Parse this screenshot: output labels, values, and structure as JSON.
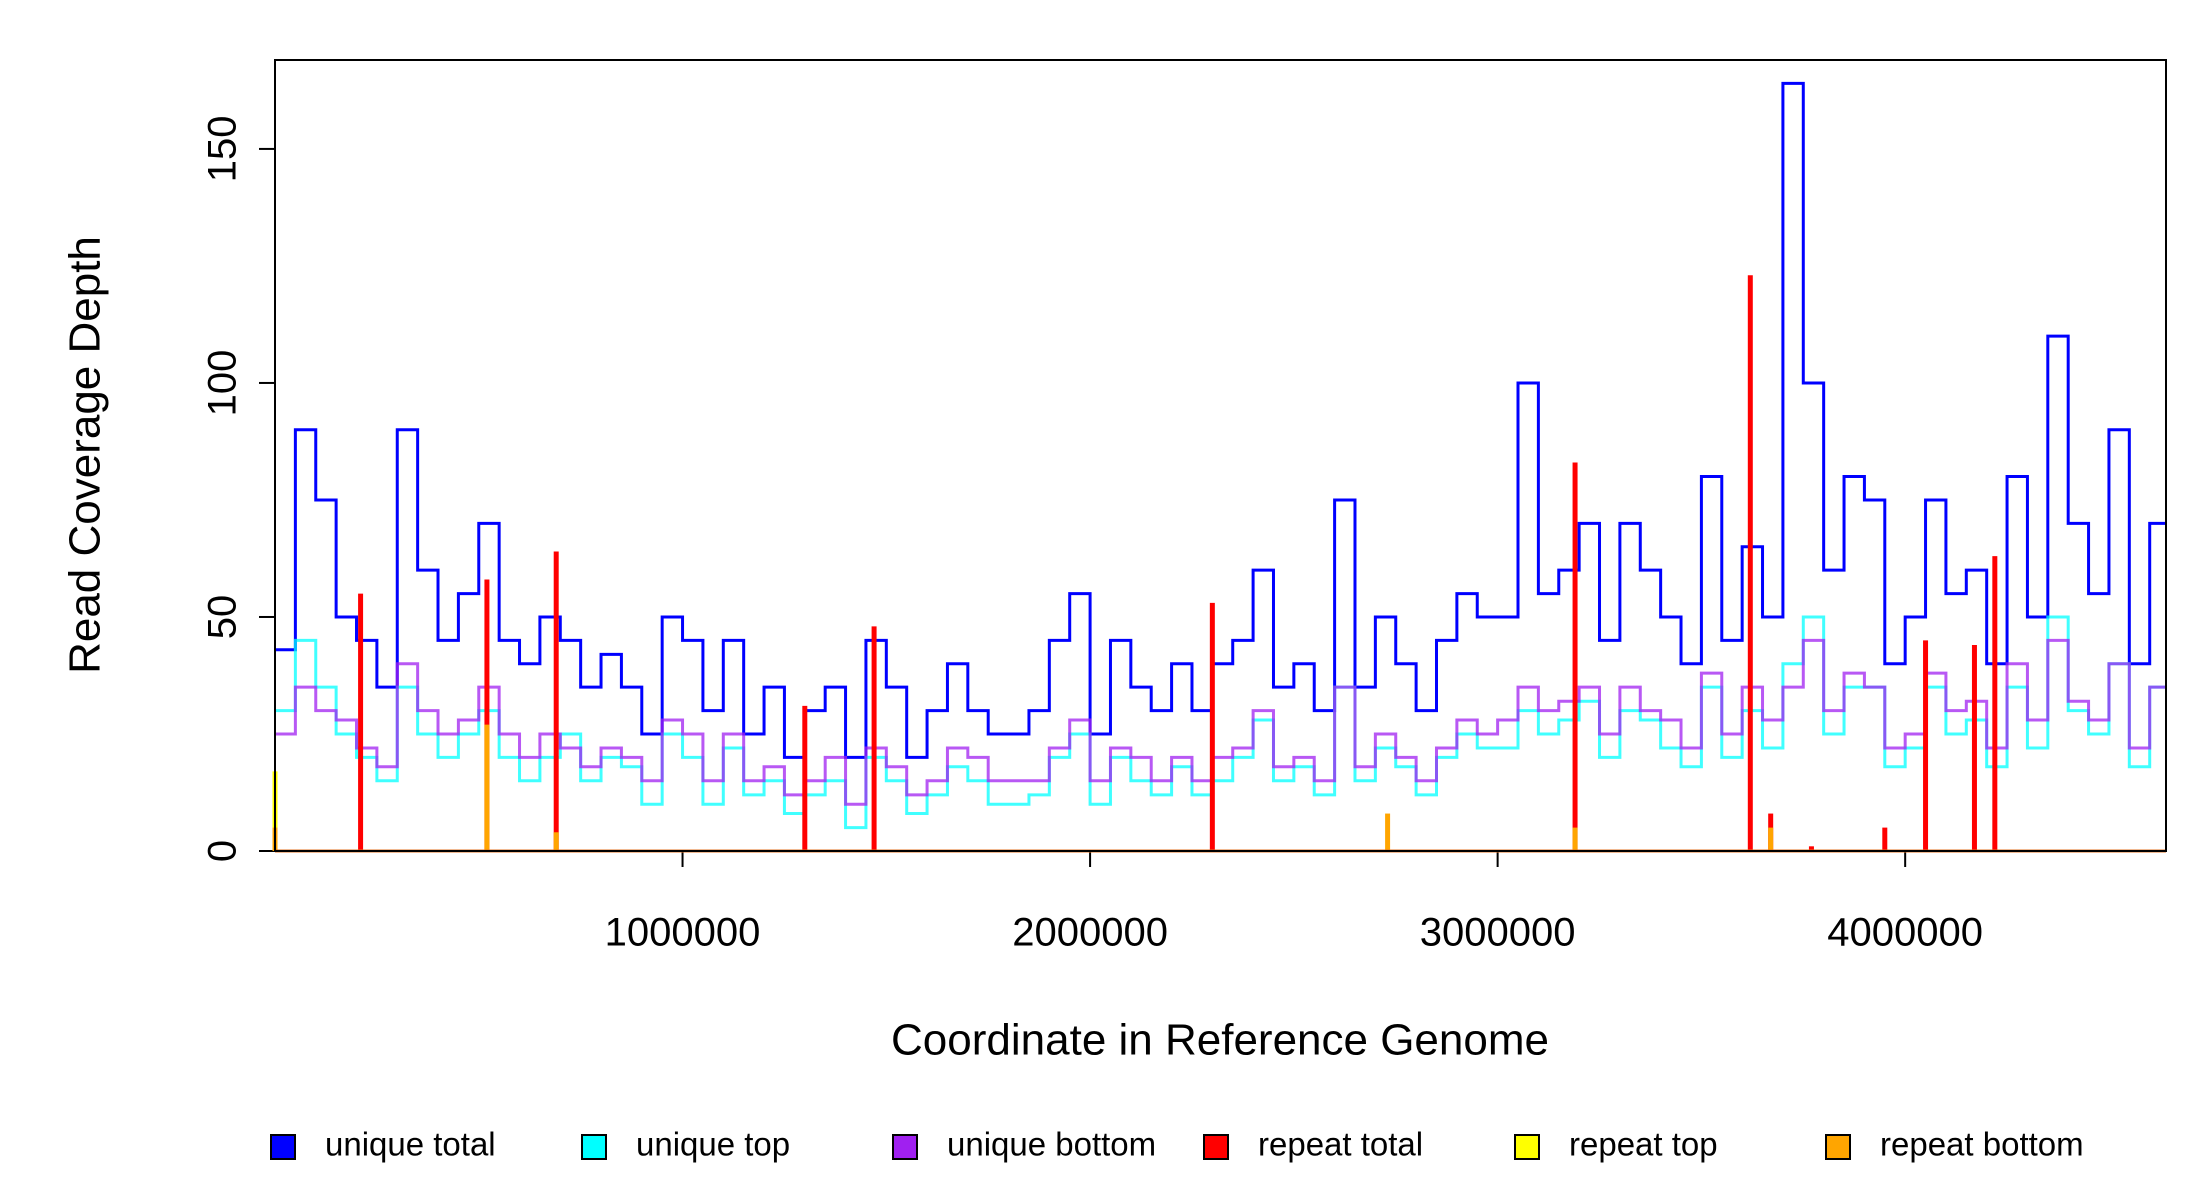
{
  "chart_data": {
    "type": "step",
    "xlabel": "Coordinate in Reference Genome",
    "ylabel": "Read Coverage Depth",
    "xlim": [
      0,
      4640000
    ],
    "ylim": [
      0,
      169
    ],
    "xticks": [
      1000000,
      2000000,
      3000000,
      4000000
    ],
    "yticks": [
      0,
      50,
      100,
      150
    ],
    "x": [
      0,
      50000,
      100000,
      150000,
      200000,
      250000,
      300000,
      350000,
      400000,
      450000,
      500000,
      550000,
      600000,
      650000,
      700000,
      750000,
      800000,
      850000,
      900000,
      950000,
      1000000,
      1050000,
      1100000,
      1150000,
      1200000,
      1250000,
      1300000,
      1350000,
      1400000,
      1450000,
      1500000,
      1550000,
      1600000,
      1650000,
      1700000,
      1750000,
      1800000,
      1850000,
      1900000,
      1950000,
      2000000,
      2050000,
      2100000,
      2150000,
      2200000,
      2250000,
      2300000,
      2350000,
      2400000,
      2450000,
      2500000,
      2550000,
      2600000,
      2650000,
      2700000,
      2750000,
      2800000,
      2850000,
      2900000,
      2950000,
      3000000,
      3050000,
      3100000,
      3150000,
      3200000,
      3250000,
      3300000,
      3350000,
      3400000,
      3450000,
      3500000,
      3550000,
      3600000,
      3650000,
      3700000,
      3750000,
      3800000,
      3850000,
      3900000,
      3950000,
      4000000,
      4050000,
      4100000,
      4150000,
      4200000,
      4250000,
      4300000,
      4350000,
      4400000,
      4450000,
      4500000,
      4550000,
      4600000
    ],
    "series": [
      {
        "name": "unique total",
        "color": "#0000ff",
        "values": [
          43,
          90,
          75,
          50,
          45,
          35,
          90,
          60,
          45,
          55,
          70,
          45,
          40,
          50,
          45,
          35,
          42,
          35,
          25,
          50,
          45,
          30,
          45,
          25,
          35,
          20,
          30,
          35,
          20,
          45,
          35,
          20,
          30,
          40,
          30,
          25,
          25,
          30,
          45,
          55,
          25,
          45,
          35,
          30,
          40,
          30,
          40,
          45,
          60,
          35,
          40,
          30,
          75,
          35,
          50,
          40,
          30,
          45,
          55,
          50,
          50,
          100,
          55,
          60,
          70,
          45,
          70,
          60,
          50,
          40,
          80,
          45,
          65,
          50,
          164,
          100,
          60,
          80,
          75,
          40,
          50,
          75,
          55,
          60,
          40,
          80,
          50,
          110,
          70,
          55,
          90,
          40,
          70
        ]
      },
      {
        "name": "unique top",
        "color": "#00ffff",
        "values": [
          30,
          45,
          35,
          25,
          20,
          15,
          35,
          25,
          20,
          25,
          30,
          20,
          15,
          20,
          25,
          15,
          20,
          18,
          10,
          25,
          20,
          10,
          22,
          12,
          15,
          8,
          12,
          15,
          5,
          20,
          15,
          8,
          12,
          18,
          15,
          10,
          10,
          12,
          20,
          25,
          10,
          20,
          15,
          12,
          18,
          12,
          15,
          20,
          28,
          15,
          18,
          12,
          35,
          15,
          22,
          18,
          12,
          20,
          25,
          22,
          22,
          30,
          25,
          28,
          32,
          20,
          30,
          28,
          22,
          18,
          35,
          20,
          30,
          22,
          40,
          50,
          25,
          35,
          35,
          18,
          22,
          35,
          25,
          28,
          18,
          35,
          22,
          50,
          30,
          25,
          40,
          18,
          35
        ]
      },
      {
        "name": "unique bottom",
        "color": "#a020f0",
        "values": [
          25,
          35,
          30,
          28,
          22,
          18,
          40,
          30,
          25,
          28,
          35,
          25,
          20,
          25,
          22,
          18,
          22,
          20,
          15,
          28,
          25,
          15,
          25,
          15,
          18,
          12,
          15,
          20,
          10,
          22,
          18,
          12,
          15,
          22,
          20,
          15,
          15,
          15,
          22,
          28,
          15,
          22,
          20,
          15,
          20,
          15,
          20,
          22,
          30,
          18,
          20,
          15,
          35,
          18,
          25,
          20,
          15,
          22,
          28,
          25,
          28,
          35,
          30,
          32,
          35,
          25,
          35,
          30,
          28,
          22,
          38,
          25,
          35,
          28,
          35,
          45,
          30,
          38,
          35,
          22,
          25,
          38,
          30,
          32,
          22,
          40,
          28,
          45,
          32,
          28,
          40,
          22,
          35
        ]
      },
      {
        "name": "repeat total",
        "color": "#ff0000",
        "x": [
          210000,
          520000,
          690000,
          1300000,
          1470000,
          2300000,
          3190000,
          3620000,
          3670000,
          3770000,
          3950000,
          4050000,
          4170000,
          4220000
        ],
        "values": [
          55,
          58,
          64,
          31,
          48,
          53,
          83,
          123,
          8,
          1,
          5,
          45,
          44,
          63
        ]
      },
      {
        "name": "repeat top",
        "color": "#ffff00",
        "x": [
          0
        ],
        "values": [
          17
        ]
      },
      {
        "name": "repeat bottom",
        "color": "#ffa500",
        "x": [
          0,
          520000,
          690000,
          2730000,
          3190000,
          3670000
        ],
        "values": [
          5,
          27,
          4,
          8,
          5,
          5
        ]
      }
    ]
  }
}
